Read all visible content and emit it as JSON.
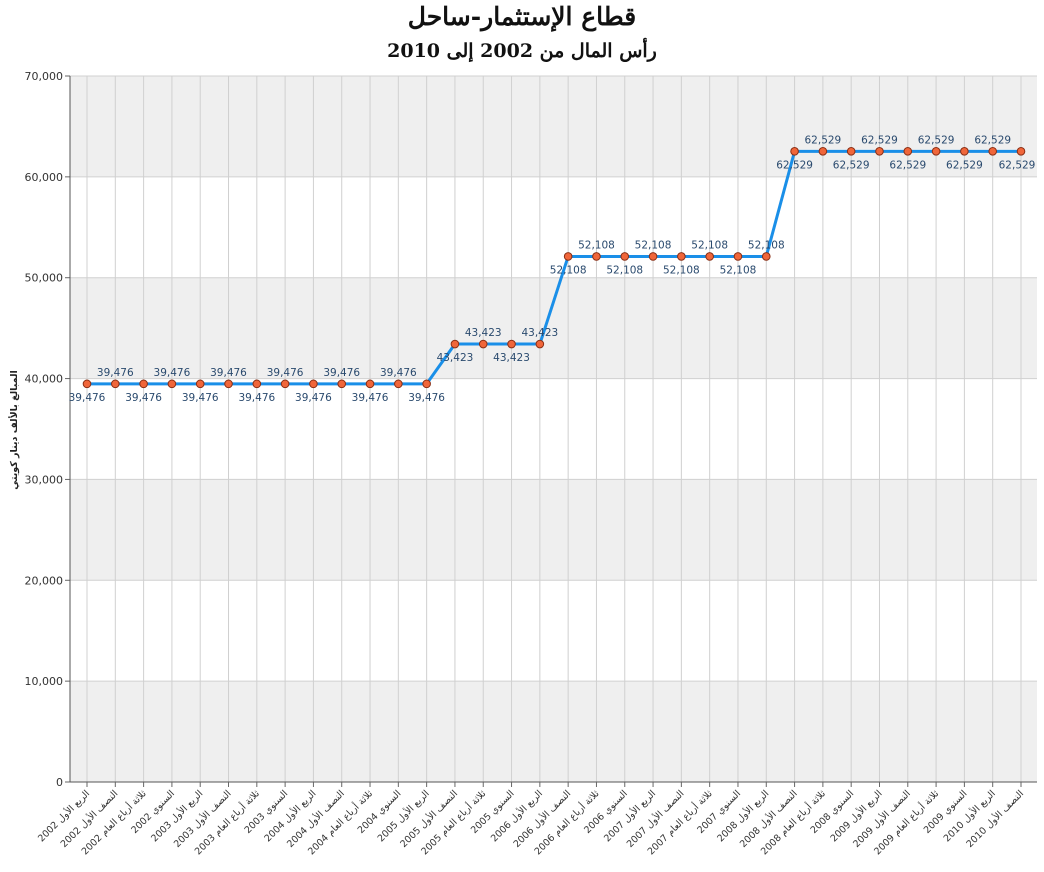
{
  "chart_data": {
    "type": "line",
    "title": "قطاع الإستثمار-ساحل",
    "subtitle": "رأس المال من 2002 إلى 2010",
    "ylabel": "المبالغ بالألف دينار كويتي",
    "xlabel": "",
    "ylim": [
      0,
      70000
    ],
    "yticks": [
      "0",
      "10,000",
      "20,000",
      "30,000",
      "40,000",
      "50,000",
      "60,000",
      "70,000"
    ],
    "grid": true,
    "legend": "none",
    "colors": {
      "line": "#1a8fe8",
      "marker_fill": "#f0663a",
      "marker_stroke": "#8a2e14",
      "band": "#efefef",
      "grid": "#d0d0d0"
    },
    "categories": [
      "الربع الأول 2002",
      "النصف الأول 2002",
      "ثلاثة أرباع العام 2002",
      "السنوي 2002",
      "الربع الأول 2003",
      "النصف الأول 2003",
      "ثلاثة أرباع العام 2003",
      "السنوي 2003",
      "الربع الأول 2004",
      "النصف الأول 2004",
      "ثلاثة أرباع العام 2004",
      "السنوي 2004",
      "الربع الأول 2005",
      "النصف الأول 2005",
      "ثلاثة أرباع العام 2005",
      "السنوي 2005",
      "الربع الأول 2006",
      "النصف الأول 2006",
      "ثلاثة أرباع العام 2006",
      "السنوي 2006",
      "الربع الأول 2007",
      "النصف الأول 2007",
      "ثلاثة أرباع العام 2007",
      "السنوي 2007",
      "الربع الأول 2008",
      "النصف الأول 2008",
      "ثلاثة أرباع العام 2008",
      "السنوي 2008",
      "الربع الأول 2009",
      "النصف الأول 2009",
      "ثلاثة أرباع العام 2009",
      "السنوي 2009",
      "الربع الأول 2010",
      "النصف الأول 2010"
    ],
    "series": [
      {
        "values": [
          39476,
          39476,
          39476,
          39476,
          39476,
          39476,
          39476,
          39476,
          39476,
          39476,
          39476,
          39476,
          39476,
          43423,
          43423,
          43423,
          43423,
          52108,
          52108,
          52108,
          52108,
          52108,
          52108,
          52108,
          52108,
          62529,
          62529,
          62529,
          62529,
          62529,
          62529,
          62529,
          62529,
          62529
        ],
        "data_labels": [
          "39,476",
          "39,476",
          "39,476",
          "39,476",
          "39,476",
          "39,476",
          "39,476",
          "39,476",
          "39,476",
          "39,476",
          "39,476",
          "39,476",
          "39,476",
          "43,423",
          "43,423",
          "43,423",
          "43,423",
          "52,108",
          "52,108",
          "52,108",
          "52,108",
          "52,108",
          "52,108",
          "52,108",
          "52,108",
          "62,529",
          "62,529",
          "62,529",
          "62,529",
          "62,529",
          "62,529",
          "62,529",
          "62,529",
          "62,529"
        ]
      }
    ]
  }
}
